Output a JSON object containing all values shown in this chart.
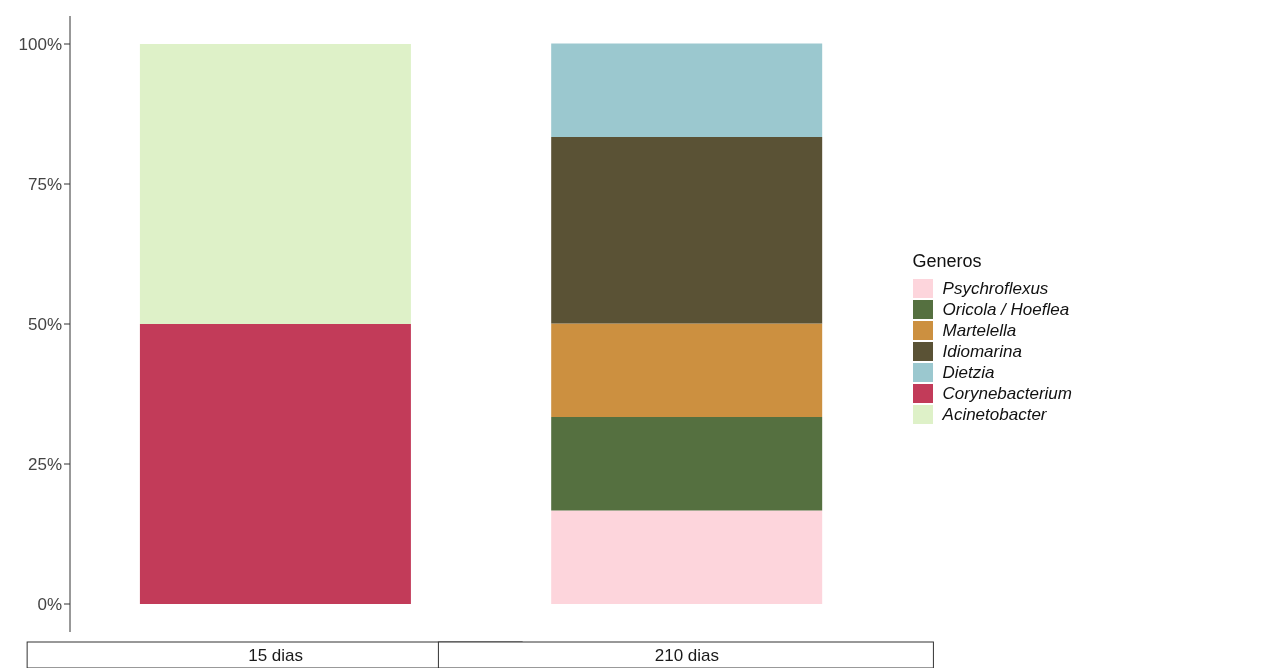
{
  "chart_data": {
    "type": "bar",
    "stacked": true,
    "categories": [
      "15 dias",
      "210 dias"
    ],
    "series": [
      {
        "name": "Psychroflexus",
        "color": "#fdd5dc",
        "values": [
          null,
          16.7
        ]
      },
      {
        "name": "Oricola / Hoeflea",
        "color": "#557040",
        "values": [
          null,
          16.7
        ]
      },
      {
        "name": "Martelella",
        "color": "#cc9040",
        "values": [
          null,
          16.7
        ]
      },
      {
        "name": "Idiomarina",
        "color": "#5a5235",
        "values": [
          null,
          33.3
        ]
      },
      {
        "name": "Dietzia",
        "color": "#9bc8cf",
        "values": [
          null,
          16.7
        ]
      },
      {
        "name": "Corynebacterium",
        "color": "#c23b59",
        "values": [
          50,
          null
        ]
      },
      {
        "name": "Acinetobacter",
        "color": "#def1c8",
        "values": [
          50,
          null
        ]
      }
    ],
    "ylim": [
      -5,
      105
    ],
    "yticks": [
      {
        "value": 0,
        "label": "0%"
      },
      {
        "value": 25,
        "label": "25%"
      },
      {
        "value": 50,
        "label": "50%"
      },
      {
        "value": 75,
        "label": "75%"
      },
      {
        "value": 100,
        "label": "100%"
      }
    ],
    "grid": false,
    "legend": "right",
    "legend_title": "Generos"
  }
}
